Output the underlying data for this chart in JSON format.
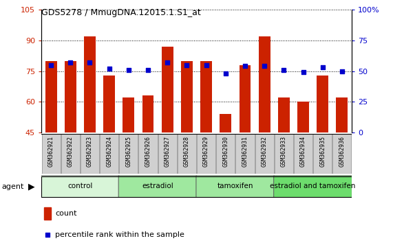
{
  "title": "GDS5278 / MmugDNA.12015.1.S1_at",
  "samples": [
    "GSM362921",
    "GSM362922",
    "GSM362923",
    "GSM362924",
    "GSM362925",
    "GSM362926",
    "GSM362927",
    "GSM362928",
    "GSM362929",
    "GSM362930",
    "GSM362931",
    "GSM362932",
    "GSM362933",
    "GSM362934",
    "GSM362935",
    "GSM362936"
  ],
  "counts": [
    80,
    80,
    92,
    73,
    62,
    63,
    87,
    80,
    80,
    54,
    78,
    92,
    62,
    60,
    73,
    62
  ],
  "percentile": [
    55,
    57,
    57,
    52,
    51,
    51,
    57,
    55,
    55,
    48,
    54,
    54,
    51,
    49,
    53,
    50
  ],
  "bar_color": "#cc2200",
  "dot_color": "#0000cc",
  "ylim_left": [
    45,
    105
  ],
  "ylim_right": [
    0,
    100
  ],
  "yticks_left": [
    45,
    60,
    75,
    90,
    105
  ],
  "yticks_right": [
    0,
    25,
    50,
    75,
    100
  ],
  "groups": [
    {
      "label": "control",
      "start": 0,
      "end": 4,
      "color": "#d8f5d8"
    },
    {
      "label": "estradiol",
      "start": 4,
      "end": 8,
      "color": "#9fe89f"
    },
    {
      "label": "tamoxifen",
      "start": 8,
      "end": 12,
      "color": "#9fe89f"
    },
    {
      "label": "estradiol and tamoxifen",
      "start": 12,
      "end": 16,
      "color": "#6ddd6d"
    }
  ],
  "legend_count_label": "count",
  "legend_percentile_label": "percentile rank within the sample",
  "agent_label": "agent",
  "bg_color": "#ffffff",
  "tick_color_left": "#cc2200",
  "tick_color_right": "#0000cc",
  "sample_bg_color": "#d0d0d0"
}
